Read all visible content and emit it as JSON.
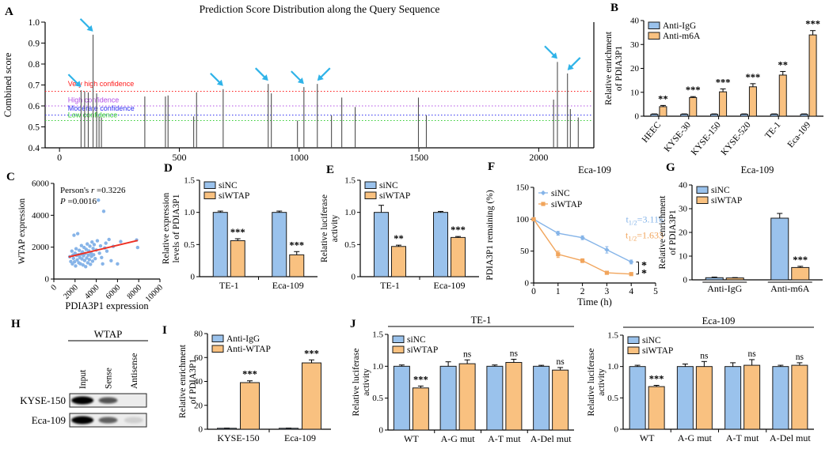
{
  "panel_labels": {
    "A": "A",
    "B": "B",
    "C": "C",
    "D": "D",
    "E": "E",
    "F": "F",
    "G": "G",
    "H": "H",
    "I": "I",
    "J": "J"
  },
  "colors": {
    "bar_blue": "#9ac2ec",
    "bar_orange": "#f9c180",
    "bar_stroke": "#1a1a1a",
    "line_blue": "#85b4e8",
    "line_orange": "#f1a55c",
    "scatter_blue": "#87b4e8",
    "trend_red": "#ee3124",
    "arrow_cyan": "#2fb3e8",
    "stem_gray": "#4f4f4f",
    "thr_red": "#ff1a1a",
    "thr_purple": "#b34fe6",
    "thr_blue": "#2a2af0",
    "thr_green": "#33cc33"
  },
  "chart_data": [
    {
      "panel": "A",
      "type": "stem",
      "title": "Prediction Score Distribution along the Query Sequence",
      "ylabel": "Combined score",
      "xlim": [
        -60,
        2230
      ],
      "ylim": [
        0.4,
        1.0
      ],
      "xtick_vals": [
        0,
        500,
        1000,
        1500,
        2000
      ],
      "xtick_labels": [
        "0",
        "500",
        "1000",
        "1500",
        "2000"
      ],
      "ytick_vals": [
        0.4,
        0.5,
        0.6,
        0.7,
        0.8,
        0.9,
        1.0
      ],
      "ytick_labels": [
        "0.4",
        "0.5",
        "0.6",
        "0.7",
        "0.8",
        "0.9",
        "1.0"
      ],
      "thresholds": [
        {
          "label": "Very high confidence",
          "value": 0.67,
          "label_y": 0.695,
          "color": "thr_red"
        },
        {
          "label": "High confidence",
          "value": 0.6,
          "label_y": 0.617,
          "color": "thr_purple"
        },
        {
          "label": "Moderate confidence",
          "value": 0.556,
          "label_y": 0.578,
          "color": "thr_blue"
        },
        {
          "label": "Low confidence",
          "value": 0.53,
          "label_y": 0.545,
          "color": "thr_green"
        }
      ],
      "stems": [
        [
          90,
          0.675
        ],
        [
          105,
          0.67
        ],
        [
          120,
          0.665
        ],
        [
          140,
          0.94
        ],
        [
          155,
          0.66
        ],
        [
          165,
          0.55
        ],
        [
          175,
          0.545
        ],
        [
          356,
          0.645
        ],
        [
          442,
          0.645
        ],
        [
          453,
          0.65
        ],
        [
          560,
          0.55
        ],
        [
          572,
          0.665
        ],
        [
          683,
          0.68
        ],
        [
          871,
          0.705
        ],
        [
          884,
          0.66
        ],
        [
          993,
          0.53
        ],
        [
          1020,
          0.69
        ],
        [
          1076,
          0.705
        ],
        [
          1135,
          0.555
        ],
        [
          1178,
          0.64
        ],
        [
          1234,
          0.595
        ],
        [
          1498,
          0.64
        ],
        [
          1531,
          0.555
        ],
        [
          2062,
          0.63
        ],
        [
          2078,
          0.81
        ],
        [
          2120,
          0.755
        ],
        [
          2132,
          0.585
        ],
        [
          2165,
          0.545
        ]
      ],
      "arrows": [
        {
          "x": 90,
          "y": 0.675,
          "dir": 1
        },
        {
          "x": 140,
          "y": 0.94,
          "dir": 1
        },
        {
          "x": 683,
          "y": 0.68,
          "dir": 1
        },
        {
          "x": 871,
          "y": 0.705,
          "dir": 1
        },
        {
          "x": 1020,
          "y": 0.69,
          "dir": 1
        },
        {
          "x": 1076,
          "y": 0.705,
          "dir": -1
        },
        {
          "x": 2078,
          "y": 0.81,
          "dir": 1
        },
        {
          "x": 2120,
          "y": 0.755,
          "dir": -1
        }
      ]
    },
    {
      "panel": "B",
      "type": "grouped_bar",
      "ylabel": [
        "Relative enrichment",
        "of PDIA3P1"
      ],
      "ylim": [
        0,
        40
      ],
      "ytick_vals": [
        0,
        10,
        20,
        30,
        40
      ],
      "ytick_labels": [
        "0",
        "10",
        "20",
        "30",
        "40"
      ],
      "categories": [
        "HEEC",
        "KYSE-30",
        "KYSE-150",
        "KYSE-520",
        "TE-1",
        "Eca-109"
      ],
      "xlabel_rotate": -50,
      "series": [
        {
          "name": "Anti-IgG",
          "color": "bar_blue",
          "values": [
            0.8,
            0.8,
            0.8,
            0.8,
            0.8,
            0.8
          ],
          "errors": [
            0.15,
            0.15,
            0.15,
            0.15,
            0.15,
            0.15
          ]
        },
        {
          "name": "Anti-m6A",
          "color": "bar_orange",
          "values": [
            4,
            7.8,
            10.2,
            12.3,
            17.2,
            34
          ],
          "errors": [
            0.5,
            0.4,
            1.2,
            1.3,
            1.5,
            1.8
          ]
        }
      ],
      "sig": {
        "series": 1,
        "labels": [
          "**",
          "***",
          "***",
          "***",
          "**",
          "***"
        ]
      }
    },
    {
      "panel": "C",
      "type": "scatter",
      "ylabel": "WTAP expression",
      "xlabel": "PDIA3P1 expression",
      "xlim": [
        0,
        10000
      ],
      "ylim": [
        0,
        6000
      ],
      "xtick_vals": [
        0,
        2000,
        4000,
        6000,
        8000,
        10000
      ],
      "xtick_labels": [
        "0",
        "2000",
        "4000",
        "6000",
        "8000",
        "10000"
      ],
      "ytick_vals": [
        0,
        2000,
        4000,
        6000
      ],
      "ytick_labels": [
        "0",
        "2000",
        "4000",
        "6000"
      ],
      "xlabel_rotate": -45,
      "annotations": [
        {
          "pre": "Person's ",
          "it": "r",
          "post": " =0.3226"
        },
        {
          "pre": "",
          "it": "P",
          "post": " =0.0016"
        }
      ],
      "trend": [
        [
          1400,
          1390
        ],
        [
          7900,
          2420
        ]
      ],
      "points": [
        [
          1500,
          1400
        ],
        [
          1600,
          1100
        ],
        [
          1700,
          1750
        ],
        [
          1750,
          950
        ],
        [
          1800,
          1500
        ],
        [
          1850,
          1300
        ],
        [
          1900,
          2750
        ],
        [
          1950,
          1080
        ],
        [
          2000,
          1620
        ],
        [
          2050,
          820
        ],
        [
          2100,
          1900
        ],
        [
          2150,
          1480
        ],
        [
          2200,
          1200
        ],
        [
          2250,
          2850
        ],
        [
          2300,
          1520
        ],
        [
          2350,
          1020
        ],
        [
          2400,
          1800
        ],
        [
          2450,
          1350
        ],
        [
          2500,
          960
        ],
        [
          2550,
          1560
        ],
        [
          2600,
          2100
        ],
        [
          2650,
          1260
        ],
        [
          2700,
          1700
        ],
        [
          2750,
          880
        ],
        [
          2800,
          1460
        ],
        [
          2850,
          1980
        ],
        [
          2900,
          1160
        ],
        [
          2950,
          1600
        ],
        [
          3000,
          780
        ],
        [
          3050,
          1860
        ],
        [
          3100,
          1320
        ],
        [
          3150,
          2200
        ],
        [
          3200,
          1020
        ],
        [
          3250,
          1500
        ],
        [
          3300,
          1760
        ],
        [
          3350,
          1220
        ],
        [
          3400,
          2060
        ],
        [
          3450,
          920
        ],
        [
          3500,
          1620
        ],
        [
          3550,
          1420
        ],
        [
          3600,
          2320
        ],
        [
          3650,
          1120
        ],
        [
          3700,
          1920
        ],
        [
          3750,
          1520
        ],
        [
          3800,
          2160
        ],
        [
          3900,
          1280
        ],
        [
          4000,
          1820
        ],
        [
          4100,
          2400
        ],
        [
          4200,
          4950
        ],
        [
          4300,
          1620
        ],
        [
          4400,
          2080
        ],
        [
          4500,
          1350
        ],
        [
          4600,
          950
        ],
        [
          4700,
          4250
        ],
        [
          4800,
          1950
        ],
        [
          4900,
          2250
        ],
        [
          5000,
          1750
        ],
        [
          5200,
          2480
        ],
        [
          5400,
          1150
        ],
        [
          5600,
          2050
        ],
        [
          6000,
          950
        ],
        [
          6300,
          2350
        ],
        [
          7800,
          2450
        ],
        [
          7900,
          1980
        ]
      ]
    },
    {
      "panel": "D",
      "type": "grouped_bar",
      "ylabel": [
        "Relative expression",
        "levels of PDIA3P1"
      ],
      "ylim": [
        0,
        1.5
      ],
      "ytick_vals": [
        0,
        0.5,
        1.0,
        1.5
      ],
      "ytick_labels": [
        "0",
        "0.5",
        "1.0",
        "1.5"
      ],
      "categories": [
        "TE-1",
        "Eca-109"
      ],
      "series": [
        {
          "name": "siNC",
          "color": "bar_blue",
          "values": [
            1.0,
            1.0
          ],
          "errors": [
            0.02,
            0.02
          ]
        },
        {
          "name": "siWTAP",
          "color": "bar_orange",
          "values": [
            0.56,
            0.34
          ],
          "errors": [
            0.03,
            0.05
          ]
        }
      ],
      "sig": {
        "series": 1,
        "labels": [
          "***",
          "***"
        ]
      }
    },
    {
      "panel": "E",
      "type": "grouped_bar",
      "ylabel": [
        "Relative luciferase",
        "activity"
      ],
      "ylim": [
        0,
        1.5
      ],
      "ytick_vals": [
        0,
        0.5,
        1.0,
        1.5
      ],
      "ytick_labels": [
        "0",
        "0.5",
        "1.0",
        "1.5"
      ],
      "categories": [
        "TE-1",
        "Eca-109"
      ],
      "series": [
        {
          "name": "siNC",
          "color": "bar_blue",
          "values": [
            1.0,
            1.0
          ],
          "errors": [
            0.11,
            0.015
          ]
        },
        {
          "name": "siWTAP",
          "color": "bar_orange",
          "values": [
            0.47,
            0.61
          ],
          "errors": [
            0.02,
            0.015
          ]
        }
      ],
      "sig": {
        "series": 1,
        "labels": [
          "**",
          "***"
        ]
      }
    },
    {
      "panel": "F",
      "type": "line",
      "title": "Eca-109",
      "ylabel": "PDIA3P1 remaining (%)",
      "xlabel": "Time (h)",
      "xlim": [
        0,
        5
      ],
      "ylim": [
        0,
        150
      ],
      "xtick_vals": [
        0,
        1,
        2,
        3,
        4,
        5
      ],
      "xtick_labels": [
        "0",
        "1",
        "2",
        "3",
        "4",
        "5"
      ],
      "ytick_vals": [
        0,
        50,
        100,
        150
      ],
      "ytick_labels": [
        "0",
        "50",
        "100",
        "150"
      ],
      "x": [
        0,
        1,
        2,
        3,
        4
      ],
      "series": [
        {
          "name": "siNC",
          "color": "line_blue",
          "marker": "diamond",
          "values": [
            100,
            78,
            71,
            52,
            33
          ],
          "errors": [
            2,
            3,
            3,
            5,
            3
          ]
        },
        {
          "name": "siWTAP",
          "color": "line_orange",
          "marker": "square",
          "values": [
            100,
            45,
            35,
            16,
            14
          ],
          "errors": [
            2,
            5,
            3,
            2,
            2
          ]
        }
      ],
      "annotations": [
        {
          "base": "t",
          "sub": "1/2",
          "rest": "=3.116",
          "color": "line_blue",
          "y": 95
        },
        {
          "base": "t",
          "sub": "1/2",
          "rest": "=1.633",
          "color": "line_orange",
          "y": 70
        }
      ],
      "bracket": {
        "x": 4.3,
        "y_top": 33,
        "y_bot": 14,
        "label": "**"
      }
    },
    {
      "panel": "G",
      "type": "grouped_bar",
      "title": "Eca-109",
      "ylabel": [
        "Relative enrichment",
        "of PDIA3P1"
      ],
      "ylim": [
        0,
        40
      ],
      "ytick_vals": [
        0,
        10,
        20,
        30,
        40
      ],
      "ytick_labels": [
        "0",
        "10",
        "20",
        "30",
        "40"
      ],
      "categories": [
        "Anti-IgG",
        "Anti-m6A"
      ],
      "group_underline": true,
      "series": [
        {
          "name": "siNC",
          "color": "bar_blue",
          "values": [
            0.9,
            26
          ],
          "errors": [
            0.25,
            2
          ]
        },
        {
          "name": "siWTAP",
          "color": "bar_orange",
          "values": [
            0.8,
            5.2
          ],
          "errors": [
            0.15,
            0.5
          ]
        }
      ],
      "sig": {
        "series": 1,
        "labels": [
          "",
          "***"
        ]
      }
    },
    {
      "panel": "H",
      "type": "blot",
      "header": "WTAP",
      "lanes": [
        "Input",
        "Sense",
        "Antisense"
      ],
      "rows": [
        {
          "label": "KYSE-150",
          "bands": [
            1.0,
            0.65,
            0.0
          ]
        },
        {
          "label": "Eca-109",
          "bands": [
            1.0,
            0.6,
            0.12
          ]
        }
      ]
    },
    {
      "panel": "I",
      "type": "grouped_bar",
      "ylabel": [
        "Relative enrichment",
        "of PDIA3P1"
      ],
      "ylim": [
        0,
        80
      ],
      "ytick_vals": [
        0,
        20,
        40,
        60,
        80
      ],
      "ytick_labels": [
        "0",
        "20",
        "40",
        "60",
        "80"
      ],
      "categories": [
        "KYSE-150",
        "Eca-109"
      ],
      "series": [
        {
          "name": "Anti-IgG",
          "color": "bar_blue",
          "values": [
            0.8,
            0.8
          ],
          "errors": [
            0.15,
            0.15
          ]
        },
        {
          "name": "Anti-WTAP",
          "color": "bar_orange",
          "values": [
            39,
            55.5
          ],
          "errors": [
            1.5,
            2.5
          ]
        }
      ],
      "sig": {
        "series": 1,
        "labels": [
          "***",
          "***"
        ]
      }
    },
    {
      "panel": "J1",
      "type": "grouped_bar",
      "title": "TE-1",
      "title_line": true,
      "ylabel": [
        "Relative luciferase",
        "activity"
      ],
      "ylim": [
        0,
        1.5
      ],
      "ytick_vals": [
        0,
        0.5,
        1.0,
        1.5
      ],
      "ytick_labels": [
        "0",
        "0.5",
        "1.0",
        "1.5"
      ],
      "categories": [
        "WT",
        "A-G mut",
        "A-T mut",
        "A-Del mut"
      ],
      "series": [
        {
          "name": "siNC",
          "color": "bar_blue",
          "values": [
            1.0,
            1.0,
            1.0,
            1.0
          ],
          "errors": [
            0.02,
            0.07,
            0.02,
            0.015
          ]
        },
        {
          "name": "siWTAP",
          "color": "bar_orange",
          "values": [
            0.66,
            1.04,
            1.06,
            0.94
          ],
          "errors": [
            0.03,
            0.06,
            0.05,
            0.04
          ]
        }
      ],
      "sig": {
        "series": 1,
        "labels": [
          "***",
          "ns",
          "ns",
          "ns"
        ]
      }
    },
    {
      "panel": "J2",
      "type": "grouped_bar",
      "title": "Eca-109",
      "title_line": true,
      "ylabel": [
        "Relative luciferase",
        "activity"
      ],
      "ylim": [
        0,
        1.5
      ],
      "ytick_vals": [
        0,
        0.5,
        1.0,
        1.5
      ],
      "ytick_labels": [
        "0",
        "0.5",
        "1.0",
        "1.5"
      ],
      "categories": [
        "WT",
        "A-G mut",
        "A-T mut",
        "A-Del mut"
      ],
      "series": [
        {
          "name": "siNC",
          "color": "bar_blue",
          "values": [
            1.0,
            1.0,
            1.0,
            1.0
          ],
          "errors": [
            0.02,
            0.04,
            0.06,
            0.02
          ]
        },
        {
          "name": "siWTAP",
          "color": "bar_orange",
          "values": [
            0.68,
            1.0,
            1.02,
            1.02
          ],
          "errors": [
            0.02,
            0.08,
            0.09,
            0.04
          ]
        }
      ],
      "sig": {
        "series": 1,
        "labels": [
          "***",
          "ns",
          "ns",
          "ns"
        ]
      }
    }
  ]
}
